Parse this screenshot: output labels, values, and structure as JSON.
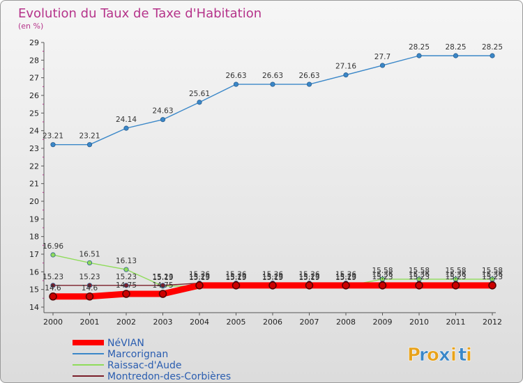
{
  "chart_data": {
    "type": "line",
    "title": "Evolution du Taux de Taxe d'Habitation",
    "subtitle": "(en %)",
    "x": [
      "2000",
      "2001",
      "2002",
      "2003",
      "2004",
      "2005",
      "2006",
      "2007",
      "2008",
      "2009",
      "2010",
      "2011",
      "2012"
    ],
    "ylim": [
      14,
      29
    ],
    "yticks": [
      14,
      15,
      16,
      17,
      18,
      19,
      20,
      21,
      22,
      23,
      24,
      25,
      26,
      27,
      28,
      29
    ],
    "grid": false,
    "legend_position": "bottom-left",
    "series": [
      {
        "name": "NéVIAN",
        "color": "#ff0000",
        "values": [
          14.6,
          14.6,
          14.75,
          14.75,
          15.23,
          15.23,
          15.23,
          15.23,
          15.23,
          15.23,
          15.23,
          15.23,
          15.23
        ],
        "labels": [
          "14.6",
          "14.6",
          "14.75",
          "14.75",
          "15.23",
          "15.23",
          "15.23",
          "15.23",
          "15.23",
          "15.23",
          "15.23",
          "15.23",
          "15.23"
        ]
      },
      {
        "name": "Marcorignan",
        "color": "#3a87c8",
        "values": [
          23.21,
          23.21,
          24.14,
          24.63,
          25.61,
          26.63,
          26.63,
          26.63,
          27.16,
          27.7,
          28.25,
          28.25,
          28.25
        ],
        "labels": [
          "23.21",
          "23.21",
          "24.14",
          "24.63",
          "25.61",
          "26.63",
          "26.63",
          "26.63",
          "27.16",
          "27.7",
          "28.25",
          "28.25",
          "28.25"
        ]
      },
      {
        "name": "Raissac-d'Aude",
        "color": "#8fdc5a",
        "values": [
          16.96,
          16.51,
          16.13,
          15.19,
          15.19,
          15.19,
          15.19,
          15.19,
          15.19,
          15.58,
          15.58,
          15.58,
          15.58
        ],
        "labels": [
          "16.96",
          "16.51",
          "16.13",
          "15.19",
          "15.19",
          "15.19",
          "15.19",
          "15.19",
          "15.19",
          "15.58",
          "15.58",
          "15.58",
          "15.58"
        ]
      },
      {
        "name": "Montredon-des-Corbières",
        "color": "#7a1e2a",
        "values": [
          15.23,
          15.23,
          15.23,
          15.23,
          15.36,
          15.36,
          15.36,
          15.36,
          15.36,
          15.36,
          15.36,
          15.36,
          15.36
        ],
        "labels": [
          "15.23",
          "15.23",
          "15.23",
          "15.23",
          "15.36",
          "15.36",
          "15.36",
          "15.36",
          "15.36",
          "15.36",
          "15.36",
          "15.36",
          "15.36"
        ]
      }
    ]
  },
  "logo": {
    "letters": [
      "P",
      "r",
      "o",
      "x",
      "i",
      "t",
      "i"
    ],
    "colors": [
      "#e8a21a",
      "#3a87c8",
      "#e8a21a",
      "#3a87c8",
      "#e8a21a",
      "#3a87c8",
      "#e8a21a"
    ]
  }
}
